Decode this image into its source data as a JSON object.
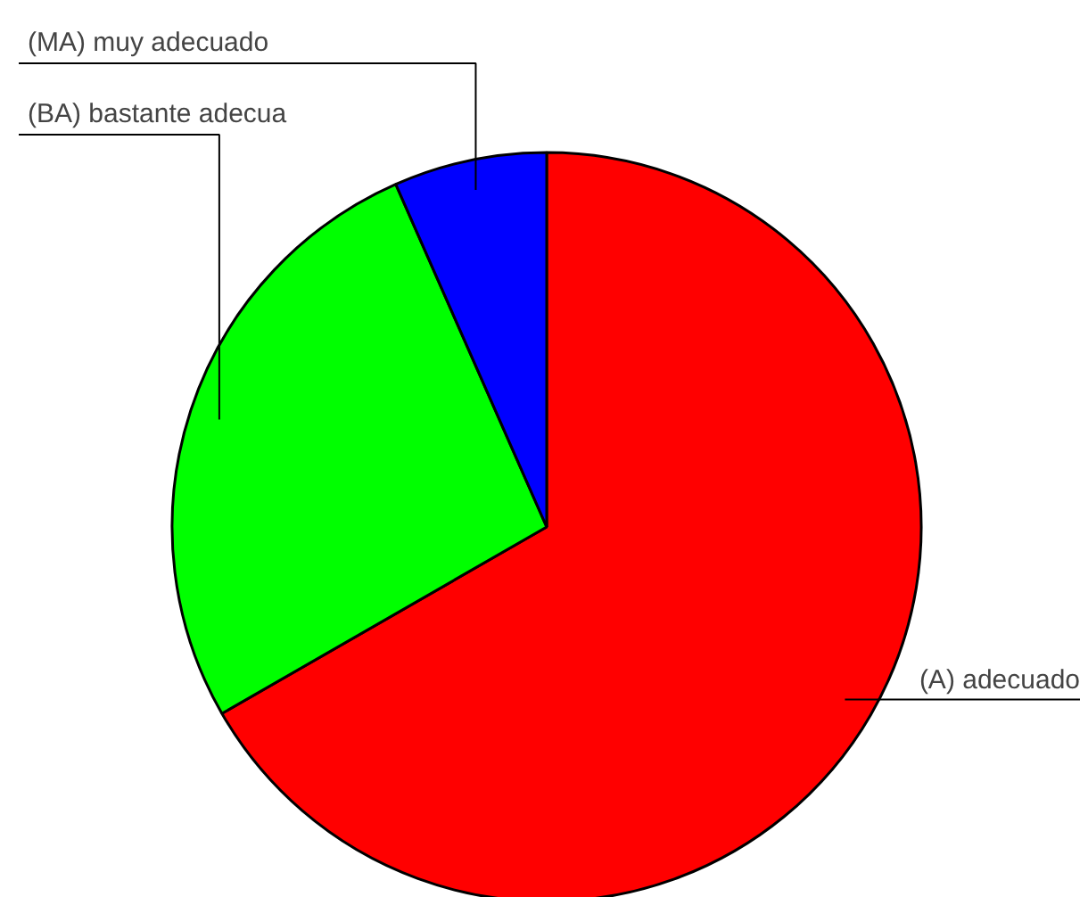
{
  "chart_data": {
    "type": "pie",
    "categories": [
      "(A) adecuado",
      "(BA) bastante adecua",
      "(MA) muy adecuado"
    ],
    "values": [
      66.7,
      26.7,
      6.6
    ],
    "colors": [
      "#ff0000",
      "#00ff00",
      "#0000ff"
    ]
  }
}
